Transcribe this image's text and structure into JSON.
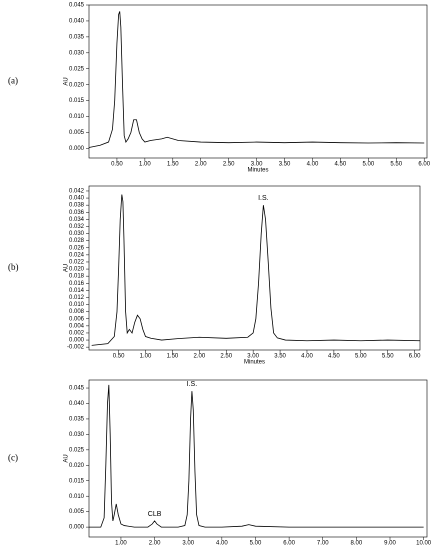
{
  "chart_data": [
    {
      "type": "line",
      "label": "(a)",
      "ylabel": "AU",
      "xlabel": "Minutes",
      "color": "#000000",
      "xlim": [
        0,
        6.05
      ],
      "ylim": [
        -0.003,
        0.045
      ],
      "xticks": [
        {
          "value": 0.5,
          "label": "0.50"
        },
        {
          "value": 1,
          "label": "1.00"
        },
        {
          "value": 1.5,
          "label": "1.50"
        },
        {
          "value": 2,
          "label": "2.00"
        },
        {
          "value": 2.5,
          "label": "2.50"
        },
        {
          "value": 3,
          "label": "3.00"
        },
        {
          "value": 3.5,
          "label": "3.50"
        },
        {
          "value": 4,
          "label": "4.00"
        },
        {
          "value": 4.5,
          "label": "4.50"
        },
        {
          "value": 5,
          "label": "5.00"
        },
        {
          "value": 5.5,
          "label": "5.50"
        },
        {
          "value": 6,
          "label": "6.00"
        }
      ],
      "yticks": [
        {
          "value": 0,
          "label": "0.000"
        },
        0.005,
        {
          "value": 0.01,
          "label": "0.010"
        },
        0.015,
        {
          "value": 0.02,
          "label": "0.020"
        },
        0.025,
        {
          "value": 0.03,
          "label": "0.030"
        },
        0.035,
        {
          "value": 0.04,
          "label": "0.040"
        },
        0.045
      ],
      "x": [
        0,
        0.2,
        0.35,
        0.42,
        0.46,
        0.5,
        0.53,
        0.55,
        0.57,
        0.6,
        0.63,
        0.66,
        0.7,
        0.75,
        0.8,
        0.85,
        0.9,
        0.95,
        1.0,
        1.1,
        1.3,
        1.4,
        1.6,
        2.0,
        2.5,
        3.0,
        3.5,
        4.0,
        4.5,
        5.0,
        5.5,
        6.0
      ],
      "values": [
        0.0003,
        0.001,
        0.002,
        0.006,
        0.015,
        0.033,
        0.042,
        0.043,
        0.038,
        0.02,
        0.004,
        0.002,
        0.003,
        0.005,
        0.009,
        0.009,
        0.005,
        0.003,
        0.002,
        0.0025,
        0.003,
        0.0035,
        0.0025,
        0.002,
        0.0018,
        0.002,
        0.0018,
        0.002,
        0.0018,
        0.0017,
        0.0018,
        0.0017
      ],
      "annotations": []
    },
    {
      "type": "line",
      "label": "(b)",
      "ylabel": "AU",
      "xlabel": "Minutes",
      "color": "#000000",
      "xlim": [
        -0.05,
        6.1
      ],
      "ylim": [
        -0.0028,
        0.0434
      ],
      "xticks": [
        {
          "value": 0.5,
          "label": "0.50"
        },
        {
          "value": 1,
          "label": "1.00"
        },
        {
          "value": 1.5,
          "label": "1.50"
        },
        {
          "value": 2,
          "label": "2.00"
        },
        {
          "value": 2.5,
          "label": "2.50"
        },
        {
          "value": 3,
          "label": "3.00"
        },
        {
          "value": 3.5,
          "label": "3.50"
        },
        {
          "value": 4,
          "label": "4.00"
        },
        {
          "value": 4.5,
          "label": "4.50"
        },
        {
          "value": 5,
          "label": "5.00"
        },
        {
          "value": 5.5,
          "label": "5.50"
        },
        {
          "value": 6,
          "label": "6.00"
        }
      ],
      "yticks": [
        -0.002,
        {
          "value": 0,
          "label": "0.000"
        },
        0.002,
        0.004,
        0.006,
        0.008,
        {
          "value": 0.01,
          "label": "0.010"
        },
        0.012,
        0.014,
        0.016,
        0.018,
        {
          "value": 0.02,
          "label": "0.020"
        },
        0.022,
        0.024,
        0.026,
        0.028,
        {
          "value": 0.03,
          "label": "0.030"
        },
        0.032,
        0.034,
        0.036,
        0.038,
        {
          "value": 0.04,
          "label": "0.040"
        },
        0.042
      ],
      "x": [
        0,
        0.3,
        0.42,
        0.47,
        0.5,
        0.53,
        0.56,
        0.58,
        0.6,
        0.63,
        0.66,
        0.7,
        0.75,
        0.8,
        0.85,
        0.9,
        0.95,
        1.0,
        1.1,
        1.3,
        1.6,
        2.0,
        2.5,
        2.9,
        3.0,
        3.05,
        3.1,
        3.15,
        3.19,
        3.23,
        3.28,
        3.33,
        3.38,
        3.45,
        3.6,
        4.0,
        4.5,
        5.0,
        5.5,
        6.1
      ],
      "values": [
        -0.0015,
        -0.001,
        0.001,
        0.008,
        0.02,
        0.034,
        0.041,
        0.039,
        0.028,
        0.008,
        0.002,
        0.003,
        0.002,
        0.005,
        0.007,
        0.006,
        0.003,
        0.001,
        0.0005,
        0,
        0.0004,
        0.0008,
        0.0005,
        0.0008,
        0.002,
        0.006,
        0.016,
        0.03,
        0.038,
        0.034,
        0.022,
        0.009,
        0.002,
        0.0006,
        0,
        -0.0002,
        0,
        -0.0002,
        0,
        -0.0002
      ],
      "annotations": [
        {
          "text": "I.S.",
          "x": 3.19
        }
      ]
    },
    {
      "type": "line",
      "label": "(c)",
      "ylabel": "AU",
      "color": "#000000",
      "xlim": [
        0.05,
        10.1
      ],
      "ylim": [
        -0.0032,
        0.0476
      ],
      "xticks": [
        {
          "value": 1,
          "label": "1.00"
        },
        {
          "value": 2,
          "label": "2.00"
        },
        {
          "value": 3,
          "label": "3.00"
        },
        {
          "value": 4,
          "label": "4.00"
        },
        {
          "value": 5,
          "label": "5.00"
        },
        {
          "value": 6,
          "label": "6.00"
        },
        {
          "value": 7,
          "label": "7.00"
        },
        {
          "value": 8,
          "label": "8.00"
        },
        {
          "value": 9,
          "label": "9.00"
        },
        {
          "value": 10,
          "label": "10.00"
        }
      ],
      "yticks": [
        {
          "value": 0,
          "label": "0.000"
        },
        0.005,
        {
          "value": 0.01,
          "label": "0.010"
        },
        0.015,
        {
          "value": 0.02,
          "label": "0.020"
        },
        0.025,
        {
          "value": 0.03,
          "label": "0.030"
        },
        0.035,
        {
          "value": 0.04,
          "label": "0.040"
        },
        0.045
      ],
      "x": [
        0.05,
        0.4,
        0.5,
        0.55,
        0.6,
        0.64,
        0.68,
        0.72,
        0.76,
        0.8,
        0.86,
        0.92,
        1.0,
        1.1,
        1.4,
        1.8,
        1.93,
        2.0,
        2.07,
        2.2,
        2.7,
        2.9,
        2.97,
        3.02,
        3.07,
        3.11,
        3.15,
        3.2,
        3.25,
        3.32,
        3.5,
        4.0,
        4.6,
        4.8,
        5.0,
        6.0,
        7.0,
        8.0,
        9.0,
        10.0
      ],
      "values": [
        0,
        0,
        0.003,
        0.02,
        0.04,
        0.046,
        0.03,
        0.008,
        0.002,
        0.004,
        0.0075,
        0.004,
        0.001,
        0.0005,
        0,
        0,
        0.001,
        0.002,
        0.001,
        0,
        0,
        0.0005,
        0.004,
        0.015,
        0.035,
        0.044,
        0.038,
        0.018,
        0.004,
        0.0005,
        0,
        0,
        0.0003,
        0.0008,
        0.0003,
        0,
        0,
        0,
        0,
        0
      ],
      "annotations": [
        {
          "text": "CLB",
          "x": 2.0
        },
        {
          "text": "I.S.",
          "x": 3.11
        }
      ]
    }
  ]
}
